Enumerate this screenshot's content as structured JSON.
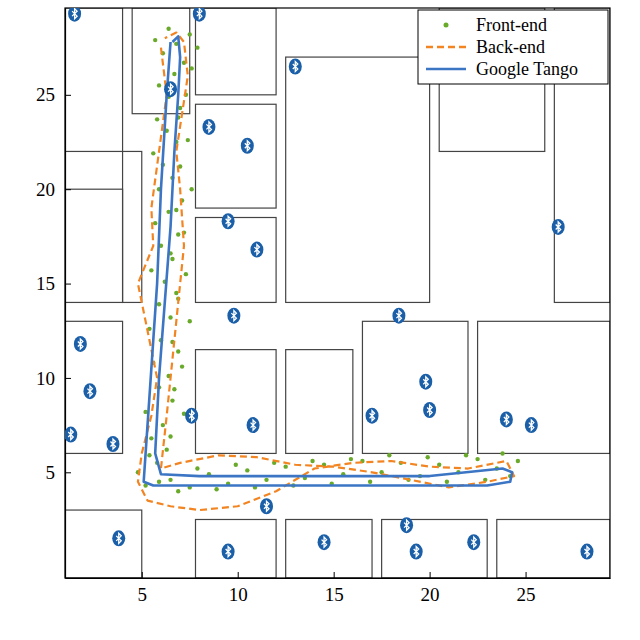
{
  "chart_data": {
    "type": "line",
    "xlim": [
      1,
      29.4
    ],
    "ylim": [
      -0.6,
      29.6
    ],
    "xticks": [
      5,
      10,
      15,
      20,
      25
    ],
    "yticks": [
      5,
      10,
      15,
      20,
      25
    ],
    "legend": "top-right",
    "series": [
      {
        "name": "Front-end",
        "type": "scatter",
        "marker": "dot",
        "color": "#6aaa2a",
        "x": [
          5.8,
          6.3,
          5.5,
          6.1,
          5.2,
          6.6,
          5.9,
          6.4,
          5.6,
          6.9,
          6.0,
          5.4,
          6.5,
          5.9,
          6.8,
          6.2,
          5.5,
          6.6,
          6.0,
          6.9,
          5.7,
          6.4,
          7.1,
          5.9,
          6.6,
          6.1,
          5.6,
          6.8,
          6.3,
          5.8,
          7.0,
          6.4,
          5.9,
          6.7,
          7.2,
          6.1,
          6.8,
          7.5,
          6.4,
          5.7,
          7.9,
          7.6,
          7.3,
          6.9,
          7.4,
          7.0,
          7.6,
          6.8,
          7.2,
          6.5,
          7.3,
          6.9,
          7.5,
          6.6,
          7.1,
          6.7,
          7.2,
          6.5,
          5.4,
          4.8,
          5.2,
          6.5,
          7.5,
          8.5,
          9.5,
          10.5,
          11.5,
          12.5,
          13.5,
          14.5,
          15.5,
          16.5,
          17.5,
          18.5,
          19.5,
          20.5,
          21.5,
          22.5,
          23.5,
          24.2,
          24.6,
          23.8,
          22.9,
          21.9,
          20.9,
          19.9,
          18.9,
          17.9,
          16.9,
          15.9,
          14.9,
          13.9,
          12.9,
          11.9,
          10.9,
          9.9,
          8.9,
          7.9,
          6.9,
          5.9
        ],
        "values": [
          5.5,
          6.2,
          6.8,
          7.5,
          8.2,
          8.8,
          9.5,
          10.1,
          10.8,
          11.4,
          12,
          12.6,
          13.2,
          13.9,
          14.5,
          15.1,
          15.7,
          16.3,
          17,
          17.6,
          18.2,
          18.8,
          19.4,
          20,
          20.6,
          21.3,
          21.9,
          22.5,
          23.1,
          23.7,
          24.3,
          24.9,
          25.5,
          26.1,
          26.7,
          27.2,
          27.7,
          28.2,
          28.5,
          27.9,
          27.5,
          26.4,
          25,
          23.8,
          22.6,
          21.2,
          20,
          18.9,
          17.7,
          16.6,
          15.5,
          14.2,
          13,
          11.9,
          10.6,
          9.4,
          8.1,
          6.9,
          5.9,
          5,
          4.3,
          4.6,
          4.2,
          4.9,
          4.4,
          5.1,
          4.6,
          5.3,
          4.7,
          5.4,
          4.9,
          5.6,
          5.0,
          5.5,
          4.8,
          5.4,
          5.0,
          5.7,
          5.2,
          4.8,
          5.6,
          6.0,
          4.6,
          5.9,
          4.5,
          5.8,
          4.6,
          5.9,
          4.5,
          5.7,
          4.4,
          5.6,
          4.3,
          5.5,
          4.2,
          5.4,
          4.1,
          5.2,
          4.0,
          4.5
        ]
      },
      {
        "name": "Back-end",
        "type": "line",
        "line_style": "dashed",
        "color": "#f28522",
        "x": [
          6,
          6.3,
          5.9,
          5.5,
          5.6,
          4.8,
          5.2,
          5.8,
          5.5,
          5.0,
          4.8,
          5.3,
          6.5,
          8,
          10,
          12,
          14,
          16,
          18,
          20,
          22,
          24,
          24.4,
          23,
          21,
          19,
          17,
          15,
          13,
          11,
          9,
          7,
          6,
          6.3,
          6.6,
          6.9,
          7.2,
          7.0,
          6.8,
          7.1,
          7.4,
          7.2,
          6.8,
          6.2
        ],
        "values": [
          27.5,
          25,
          22,
          19,
          17,
          15,
          13,
          10,
          8,
          6,
          4.5,
          3.5,
          3.2,
          3.0,
          3.2,
          4.0,
          5.2,
          5.5,
          5.6,
          5.3,
          5.2,
          5.6,
          4.8,
          4.5,
          4.2,
          4.6,
          5.0,
          5.3,
          5.4,
          5.8,
          5.9,
          5.5,
          5.2,
          8,
          11,
          14,
          17,
          20,
          22,
          24,
          26,
          27.8,
          28.3,
          28
        ]
      },
      {
        "name": "Google Tango",
        "type": "line",
        "line_style": "solid",
        "color": "#3b75c4",
        "x": [
          6.5,
          6.3,
          6.0,
          5.8,
          5.6,
          5.4,
          5.2,
          5.1,
          5.6,
          8,
          12,
          16,
          20,
          23,
          24.2,
          24.3,
          23.8,
          20,
          16,
          12,
          8,
          6,
          5.7,
          5.9,
          6.2,
          6.5,
          6.7,
          6.9,
          7.0,
          6.9,
          6.6
        ],
        "values": [
          27.8,
          25,
          20,
          15,
          12,
          9,
          6,
          4.5,
          4.3,
          4.3,
          4.3,
          4.3,
          4.3,
          4.3,
          4.5,
          5.0,
          5.2,
          4.8,
          4.8,
          4.8,
          4.8,
          4.9,
          6,
          10,
          14,
          18,
          22,
          25,
          27,
          28.1,
          27.8
        ]
      },
      {
        "type": "scatter",
        "marker": "bluetooth",
        "color": "#1a5fa8",
        "x": [
          1.5,
          8,
          13,
          6.5,
          8.5,
          10.5,
          9.5,
          11,
          26.7,
          9.8,
          1.8,
          2.3,
          1.3,
          18.4,
          19.8,
          7.6,
          10.8,
          17,
          20,
          24,
          25.3,
          3.5,
          11.5,
          3.8,
          9.5,
          18.8,
          19.3,
          22.3,
          28.2,
          14.5
        ],
        "values": [
          29.3,
          29.3,
          26.5,
          25.3,
          23.3,
          22.3,
          18.3,
          16.8,
          18,
          13.3,
          11.8,
          9.3,
          7,
          13.3,
          9.8,
          8,
          7.5,
          8,
          8.3,
          7.8,
          7.5,
          6.5,
          3.2,
          1.5,
          0.8,
          2.2,
          0.8,
          1.3,
          0.8,
          1.3
        ]
      }
    ]
  }
}
